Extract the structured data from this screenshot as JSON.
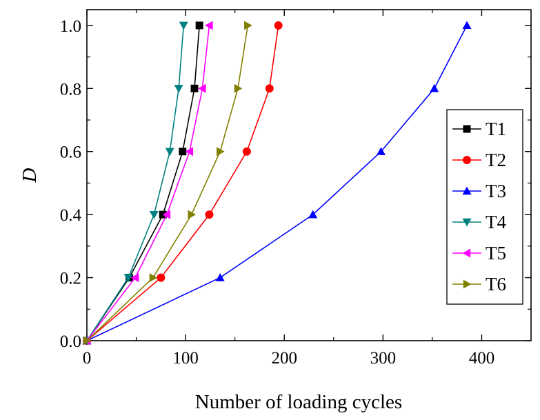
{
  "chart_data": {
    "type": "line",
    "xlabel": "Number of loading cycles",
    "ylabel": "D",
    "xlim": [
      0,
      450
    ],
    "ylim": [
      0,
      1.05
    ],
    "x_ticks": [
      0,
      100,
      200,
      300,
      400
    ],
    "x_tick_labels": [
      "0",
      "100",
      "200",
      "300",
      "400"
    ],
    "y_ticks": [
      0.0,
      0.2,
      0.4,
      0.6,
      0.8,
      1.0
    ],
    "y_tick_labels": [
      "0.0",
      "0.2",
      "0.4",
      "0.6",
      "0.8",
      "1.0"
    ],
    "grid": false,
    "legend_position": "right",
    "series": [
      {
        "name": "T1",
        "color": "#000000",
        "marker": "square",
        "x": [
          0,
          43,
          77,
          97,
          109,
          114
        ],
        "y": [
          0,
          0.2,
          0.4,
          0.6,
          0.8,
          1.0
        ]
      },
      {
        "name": "T2",
        "color": "#ff0000",
        "marker": "circle",
        "x": [
          0,
          75,
          124,
          162,
          185,
          194
        ],
        "y": [
          0,
          0.2,
          0.4,
          0.6,
          0.8,
          1.0
        ]
      },
      {
        "name": "T3",
        "color": "#0000ff",
        "marker": "triangle-up",
        "x": [
          0,
          135,
          229,
          298,
          352,
          385
        ],
        "y": [
          0,
          0.2,
          0.4,
          0.6,
          0.8,
          1.0
        ]
      },
      {
        "name": "T4",
        "color": "#008080",
        "marker": "triangle-down",
        "x": [
          0,
          42,
          68,
          84,
          93,
          98
        ],
        "y": [
          0,
          0.2,
          0.4,
          0.6,
          0.8,
          1.0
        ]
      },
      {
        "name": "T5",
        "color": "#ff00ff",
        "marker": "triangle-left",
        "x": [
          0,
          49,
          81,
          104,
          117,
          124
        ],
        "y": [
          0,
          0.2,
          0.4,
          0.6,
          0.8,
          1.0
        ]
      },
      {
        "name": "T6",
        "color": "#808000",
        "marker": "triangle-right",
        "x": [
          0,
          67,
          106,
          135,
          153,
          163
        ],
        "y": [
          0,
          0.2,
          0.4,
          0.6,
          0.8,
          1.0
        ]
      }
    ]
  }
}
